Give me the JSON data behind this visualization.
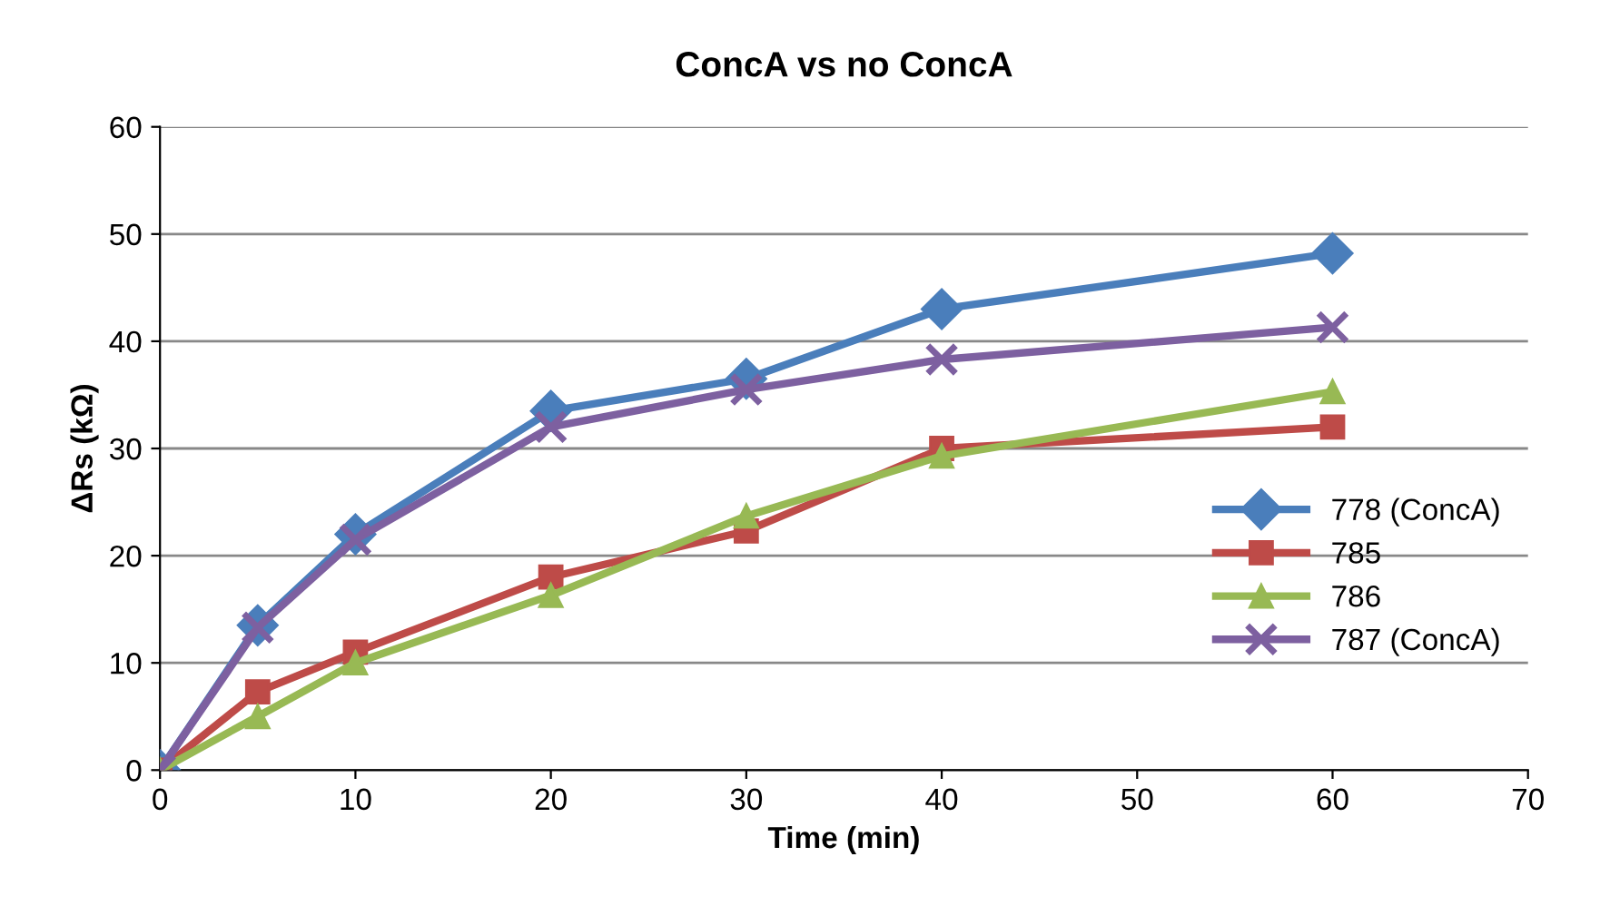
{
  "chart_data": {
    "type": "line",
    "title": "ConcA vs no ConcA",
    "xlabel": "Time (min)",
    "ylabel": "ΔRs (kΩ)",
    "x": [
      0,
      5,
      10,
      20,
      30,
      40,
      60
    ],
    "series": [
      {
        "name": "778 (ConcA)",
        "color": "#4a7ebb",
        "marker": "diamond",
        "values": [
          0,
          13.5,
          22,
          33.5,
          36.5,
          43,
          48.2
        ]
      },
      {
        "name": "785",
        "color": "#be4b48",
        "marker": "square",
        "values": [
          0,
          7.3,
          11,
          18,
          22.3,
          30,
          32
        ]
      },
      {
        "name": "786",
        "color": "#98b954",
        "marker": "triangle",
        "values": [
          0,
          5,
          10,
          16.3,
          23.7,
          29.3,
          35.3
        ]
      },
      {
        "name": "787 (ConcA)",
        "color": "#7d60a0",
        "marker": "cross",
        "values": [
          0,
          13.3,
          21.5,
          32,
          35.5,
          38.3,
          41.3
        ]
      }
    ],
    "xlim": [
      0,
      70
    ],
    "xticks": [
      0,
      10,
      20,
      30,
      40,
      50,
      60,
      70
    ],
    "ylim": [
      0,
      60
    ],
    "yticks": [
      0,
      10,
      20,
      30,
      40,
      50,
      60
    ],
    "grid": "y",
    "legend": "right",
    "line_style": "solid"
  }
}
